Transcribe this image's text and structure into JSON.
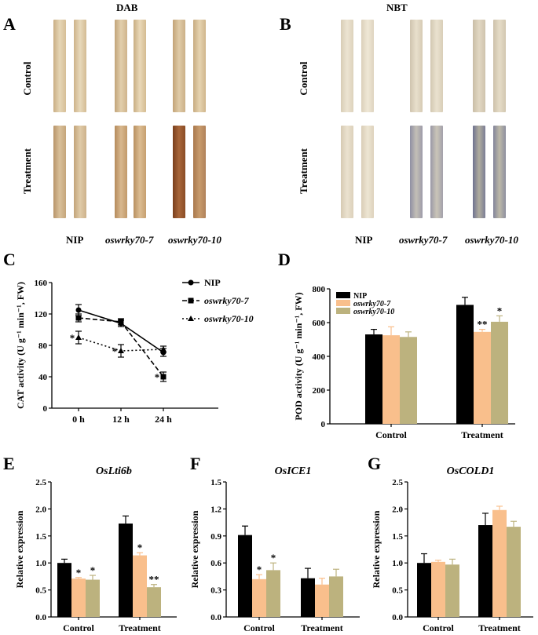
{
  "figure": {
    "panels": [
      "A",
      "B",
      "C",
      "D",
      "E",
      "F",
      "G"
    ],
    "stain_titles": {
      "dab": "DAB",
      "nbt": "NBT"
    },
    "row_labels": {
      "control": "Control",
      "treatment": "Treatment"
    },
    "genotypes": [
      "NIP",
      "oswrky70-7",
      "oswrky70-10"
    ]
  },
  "chart_data": [
    {
      "panel": "C",
      "type": "line",
      "title": "",
      "xlabel": "",
      "ylabel": "CAT activity (U g⁻¹ min⁻¹, FW)",
      "categories": [
        "0 h",
        "12 h",
        "24 h"
      ],
      "ylim": [
        0,
        160
      ],
      "yticks": [
        0,
        40,
        80,
        120,
        160
      ],
      "legend": "top-right",
      "series": [
        {
          "name": "NIP",
          "values": [
            125,
            108,
            71
          ],
          "errors": [
            7,
            4,
            5
          ],
          "sig": [
            "",
            "",
            ""
          ]
        },
        {
          "name": "oswrky70-7",
          "values": [
            115,
            110,
            40
          ],
          "errors": [
            5,
            4,
            6
          ],
          "sig": [
            "",
            "",
            "*"
          ]
        },
        {
          "name": "oswrky70-10",
          "values": [
            90,
            73,
            75
          ],
          "errors": [
            8,
            8,
            4
          ],
          "sig": [
            "*",
            "*",
            ""
          ]
        }
      ]
    },
    {
      "panel": "D",
      "type": "bar",
      "title": "",
      "xlabel": "",
      "ylabel": "POD activity (U g⁻¹ min⁻¹, FW)",
      "categories": [
        "Control",
        "Treatment"
      ],
      "ylim": [
        0,
        800
      ],
      "yticks": [
        0,
        200,
        400,
        600,
        800
      ],
      "legend": "top-left",
      "series": [
        {
          "name": "NIP",
          "values": [
            530,
            705
          ],
          "errors": [
            30,
            45
          ],
          "sig": [
            "",
            ""
          ]
        },
        {
          "name": "oswrky70-7",
          "values": [
            525,
            545
          ],
          "errors": [
            50,
            15
          ],
          "sig": [
            "",
            "**"
          ]
        },
        {
          "name": "oswrky70-10",
          "values": [
            515,
            605
          ],
          "errors": [
            30,
            35
          ],
          "sig": [
            "",
            "*"
          ]
        }
      ]
    },
    {
      "panel": "E",
      "type": "bar",
      "title": "OsLti6b",
      "xlabel": "",
      "ylabel": "Relative expression",
      "categories": [
        "Control",
        "Treatment"
      ],
      "ylim": [
        0,
        2.5
      ],
      "yticks": [
        "0.0",
        "0.5",
        "1.0",
        "1.5",
        "2.0",
        "2.5"
      ],
      "series": [
        {
          "values": [
            1.0,
            1.73
          ],
          "errors": [
            0.07,
            0.14
          ],
          "sig": [
            "",
            ""
          ]
        },
        {
          "values": [
            0.71,
            1.14
          ],
          "errors": [
            0.02,
            0.05
          ],
          "sig": [
            "*",
            "*"
          ]
        },
        {
          "values": [
            0.69,
            0.55
          ],
          "errors": [
            0.08,
            0.05
          ],
          "sig": [
            "*",
            "**"
          ]
        }
      ]
    },
    {
      "panel": "F",
      "type": "bar",
      "title": "OsICE1",
      "xlabel": "",
      "ylabel": "Relative expression",
      "categories": [
        "Control",
        "Treatment"
      ],
      "ylim": [
        0,
        1.5
      ],
      "yticks": [
        "0.0",
        "0.3",
        "0.6",
        "0.9",
        "1.2",
        "1.5"
      ],
      "series": [
        {
          "values": [
            0.91,
            0.43
          ],
          "errors": [
            0.1,
            0.11
          ],
          "sig": [
            "",
            ""
          ]
        },
        {
          "values": [
            0.42,
            0.36
          ],
          "errors": [
            0.05,
            0.07
          ],
          "sig": [
            "*",
            ""
          ]
        },
        {
          "values": [
            0.52,
            0.45
          ],
          "errors": [
            0.08,
            0.08
          ],
          "sig": [
            "*",
            ""
          ]
        }
      ]
    },
    {
      "panel": "G",
      "type": "bar",
      "title": "OsCOLD1",
      "xlabel": "",
      "ylabel": "Relative expression",
      "categories": [
        "Control",
        "Treatment"
      ],
      "ylim": [
        0,
        2.5
      ],
      "yticks": [
        "0.0",
        "0.5",
        "1.0",
        "1.5",
        "2.0",
        "2.5"
      ],
      "series": [
        {
          "values": [
            1.0,
            1.7
          ],
          "errors": [
            0.17,
            0.22
          ],
          "sig": [
            "",
            ""
          ]
        },
        {
          "values": [
            1.02,
            1.98
          ],
          "errors": [
            0.03,
            0.07
          ],
          "sig": [
            "",
            ""
          ]
        },
        {
          "values": [
            0.97,
            1.67
          ],
          "errors": [
            0.1,
            0.1
          ],
          "sig": [
            "",
            ""
          ]
        }
      ]
    }
  ],
  "colors": {
    "nip": "#000000",
    "oswrky70_7": "#f9bf8c",
    "oswrky70_10": "#bcb27e"
  }
}
